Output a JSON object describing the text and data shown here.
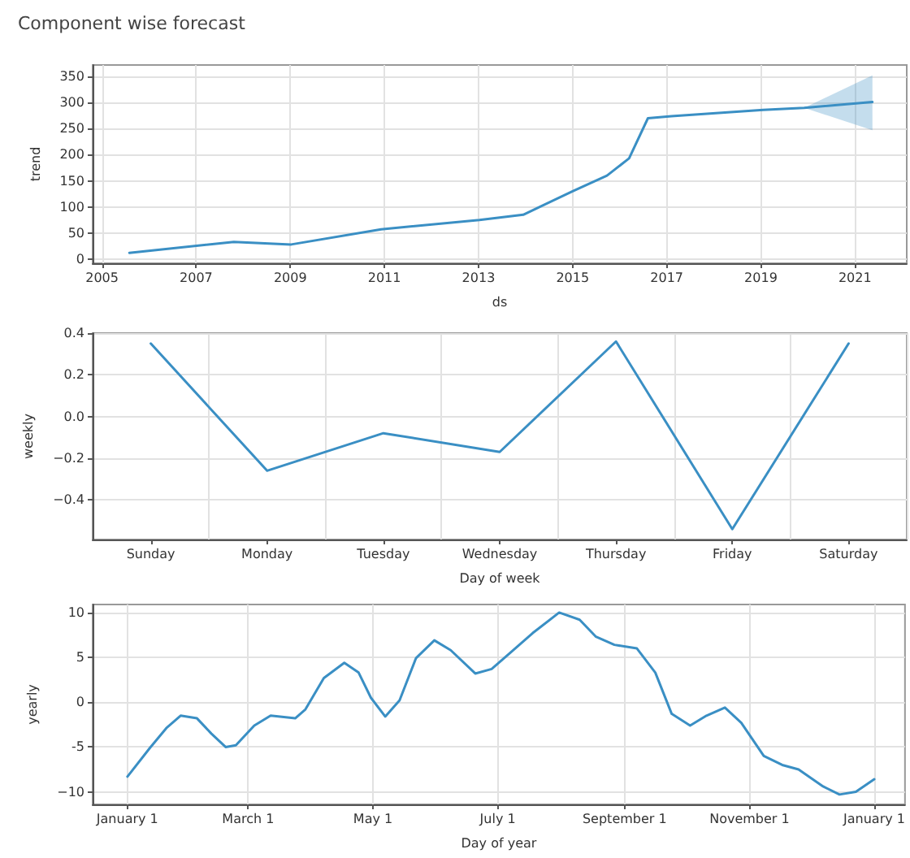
{
  "chart_data": [
    {
      "type": "line",
      "title": "Component wise forecast",
      "xlabel": "ds",
      "ylabel": "trend",
      "x": [
        2005.58,
        2007.8,
        2009.02,
        2010.93,
        2013.02,
        2013.95,
        2015.0,
        2015.73,
        2016.2,
        2016.6,
        2017.1,
        2019.05,
        2019.92,
        2021.37
      ],
      "series": [
        {
          "color": "#3a8fc4",
          "values": [
            12,
            33,
            28,
            57,
            75,
            85,
            130,
            160,
            193,
            270,
            274,
            286,
            290,
            301
          ],
          "lower": [
            null,
            null,
            null,
            null,
            null,
            null,
            null,
            null,
            null,
            null,
            null,
            null,
            290,
            247
          ],
          "upper": [
            null,
            null,
            null,
            null,
            null,
            null,
            null,
            null,
            null,
            null,
            null,
            null,
            290,
            352
          ]
        }
      ],
      "xlim": [
        2004.8,
        2022.1
      ],
      "xticks": [
        2005,
        2007,
        2009,
        2011,
        2013,
        2015,
        2017,
        2019,
        2021
      ],
      "ylim": [
        -8,
        372
      ],
      "yticks": [
        0,
        50,
        100,
        150,
        200,
        250,
        300,
        350
      ],
      "grid": true
    },
    {
      "type": "line",
      "xlabel": "Day of week",
      "ylabel": "weekly",
      "categories": [
        "Sunday",
        "Monday",
        "Tuesday",
        "Wednesday",
        "Thursday",
        "Friday",
        "Saturday"
      ],
      "series": [
        {
          "color": "#3a8fc4",
          "values": [
            0.35,
            -0.26,
            -0.08,
            -0.17,
            0.36,
            -0.54,
            0.35
          ]
        }
      ],
      "ylim": [
        -0.59,
        0.4
      ],
      "yticks": [
        {
          "value": -0.4,
          "label": "−0.4"
        },
        {
          "value": -0.2,
          "label": "−0.2"
        },
        {
          "value": 0,
          "label": "0.0"
        },
        {
          "value": 0.2,
          "label": "0.2"
        },
        {
          "value": 0.4,
          "label": "0.4"
        }
      ],
      "grid": true
    },
    {
      "type": "line",
      "xlabel": "Day of year",
      "ylabel": "yearly",
      "x": [
        "2017-01-01",
        "2017-01-12",
        "2017-01-20",
        "2017-01-27",
        "2017-02-04",
        "2017-02-11",
        "2017-02-18",
        "2017-02-23",
        "2017-03-04",
        "2017-03-12",
        "2017-03-24",
        "2017-03-29",
        "2017-04-07",
        "2017-04-17",
        "2017-04-24",
        "2017-04-30",
        "2017-05-07",
        "2017-05-14",
        "2017-05-22",
        "2017-05-31",
        "2017-06-08",
        "2017-06-20",
        "2017-06-28",
        "2017-07-07",
        "2017-07-18",
        "2017-07-31",
        "2017-08-10",
        "2017-08-18",
        "2017-08-27",
        "2017-09-07",
        "2017-09-16",
        "2017-09-24",
        "2017-10-03",
        "2017-10-11",
        "2017-10-20",
        "2017-10-28",
        "2017-11-08",
        "2017-11-17",
        "2017-11-25",
        "2017-12-07",
        "2017-12-15",
        "2017-12-23",
        "2018-01-01"
      ],
      "series": [
        {
          "color": "#3a8fc4",
          "values": [
            -8.3,
            -5.1,
            -2.9,
            -1.5,
            -1.8,
            -3.5,
            -5.0,
            -4.8,
            -2.6,
            -1.5,
            -1.8,
            -0.8,
            2.7,
            4.4,
            3.3,
            0.5,
            -1.6,
            0.2,
            4.9,
            6.9,
            5.8,
            3.2,
            3.7,
            5.5,
            7.7,
            10.0,
            9.2,
            7.3,
            6.4,
            6.0,
            3.3,
            -1.3,
            -2.6,
            -1.5,
            -0.6,
            -2.3,
            -6.0,
            -7.0,
            -7.5,
            -9.4,
            -10.3,
            -10.0,
            -8.6
          ]
        }
      ],
      "xlim": [
        "2016-12-15",
        "2018-01-16"
      ],
      "xticks": [
        {
          "value": "2017-01-01",
          "label": "January 1"
        },
        {
          "value": "2017-03-01",
          "label": "March 1"
        },
        {
          "value": "2017-05-01",
          "label": "May 1"
        },
        {
          "value": "2017-07-01",
          "label": "July 1"
        },
        {
          "value": "2017-09-01",
          "label": "September 1"
        },
        {
          "value": "2017-11-01",
          "label": "November 1"
        },
        {
          "value": "2018-01-01",
          "label": "January 1"
        }
      ],
      "ylim": [
        -11.4,
        10.9
      ],
      "yticks": [
        {
          "value": -10,
          "label": "−10"
        },
        -5,
        0,
        5,
        10
      ],
      "grid": true
    }
  ]
}
